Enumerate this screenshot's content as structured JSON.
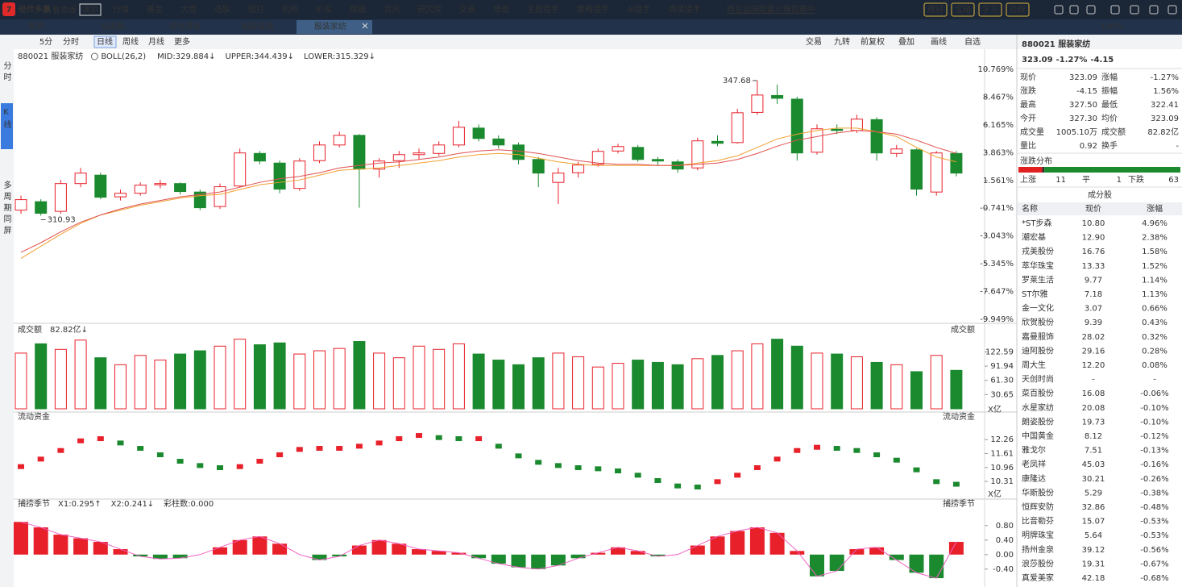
{
  "app": {
    "logo_mark": "7",
    "logo": "经传多赢",
    "edition": "智尊版",
    "mode": "演示",
    "menu": [
      "行情",
      "基金",
      "大盘",
      "选股",
      "短打",
      "机构",
      "价投",
      "数据",
      "资讯",
      "研究院",
      "交易",
      "增值",
      "主题猎手",
      "策略猎手",
      "AI猎手",
      "舆情猎手"
    ],
    "promo": "杨总监陪跑震火爆招募中",
    "tools": [
      "理财",
      "宝箱",
      "学习",
      "社群"
    ],
    "zoom": "100%"
  },
  "tabs": [
    "首页",
    "自选股",
    "综合排名",
    "超级复盘",
    "服装家纺"
  ],
  "side_tabs": [
    "分时",
    "K线",
    "多周期同屏"
  ],
  "toolbar": {
    "left": [
      "5分",
      "分时",
      "日线",
      "周线",
      "月线",
      "更多"
    ],
    "right": [
      "交易",
      "九转",
      "前复权",
      "叠加",
      "画线",
      "自选"
    ]
  },
  "chart_data": [
    {
      "type": "candlestick",
      "title": "880021 服装家纺",
      "subtitle": "BOLL(26,2)",
      "legend": [
        {
          "text": "MID:329.884↓",
          "color": "#333333"
        },
        {
          "text": "UPPER:344.439↓",
          "color": "#e08a00"
        },
        {
          "text": "LOWER:315.329↓",
          "color": "#e020c0"
        }
      ],
      "ylim": [
        -9.949,
        10.769
      ],
      "yticks": [
        {
          "value": 10.769,
          "label": "10.769%"
        },
        {
          "value": 8.467,
          "label": "8.467%"
        },
        {
          "value": 6.165,
          "label": "6.165%"
        },
        {
          "value": 3.863,
          "label": "3.863%"
        },
        {
          "value": 1.561,
          "label": "1.561%"
        },
        {
          "value": -0.741,
          "label": "-0.741%"
        },
        {
          "value": -3.043,
          "label": "-3.043%"
        },
        {
          "value": -5.345,
          "label": "-5.345%"
        },
        {
          "value": -7.647,
          "label": "-7.647%"
        },
        {
          "value": -9.949,
          "label": "-9.949%"
        }
      ],
      "up_color": "#e8202a",
      "down_color": "#1b8a2f",
      "candles": [
        [
          -0.9,
          0.3,
          -1.2,
          -0.03
        ],
        [
          -0.2,
          0.0,
          -1.36,
          -1.16
        ],
        [
          -1.0,
          1.6,
          -1.2,
          1.3
        ],
        [
          1.3,
          2.6,
          1.0,
          2.17
        ],
        [
          2.0,
          2.2,
          0.0,
          0.17
        ],
        [
          0.2,
          0.8,
          -0.1,
          0.5
        ],
        [
          0.5,
          1.4,
          0.3,
          1.17
        ],
        [
          1.2,
          1.6,
          0.9,
          1.3
        ],
        [
          1.3,
          1.4,
          0.4,
          0.64
        ],
        [
          0.6,
          0.8,
          -0.9,
          -0.7
        ],
        [
          -0.6,
          1.3,
          -0.8,
          1.04
        ],
        [
          1.1,
          4.2,
          1.0,
          3.84
        ],
        [
          3.8,
          4.0,
          2.9,
          3.17
        ],
        [
          3.0,
          3.2,
          0.5,
          0.84
        ],
        [
          0.9,
          3.4,
          0.7,
          3.17
        ],
        [
          3.2,
          4.8,
          3.0,
          4.5
        ],
        [
          4.5,
          5.6,
          4.3,
          5.3
        ],
        [
          5.3,
          5.4,
          -0.7,
          2.5
        ],
        [
          2.5,
          3.4,
          1.8,
          3.17
        ],
        [
          3.2,
          4.0,
          2.6,
          3.7
        ],
        [
          3.7,
          4.2,
          3.3,
          3.84
        ],
        [
          3.8,
          4.8,
          3.6,
          4.5
        ],
        [
          4.5,
          6.5,
          4.3,
          5.97
        ],
        [
          5.9,
          6.2,
          4.8,
          5.04
        ],
        [
          5.0,
          5.3,
          4.2,
          4.5
        ],
        [
          4.5,
          4.7,
          2.9,
          3.3
        ],
        [
          3.3,
          3.5,
          1.0,
          2.17
        ],
        [
          1.4,
          2.6,
          -0.4,
          2.17
        ],
        [
          2.2,
          3.1,
          1.8,
          2.84
        ],
        [
          2.9,
          4.2,
          2.7,
          3.97
        ],
        [
          4.0,
          4.6,
          3.8,
          4.37
        ],
        [
          4.3,
          4.5,
          3.1,
          3.3
        ],
        [
          3.3,
          3.5,
          2.8,
          3.17
        ],
        [
          3.1,
          3.3,
          2.2,
          2.5
        ],
        [
          2.6,
          5.1,
          2.4,
          4.84
        ],
        [
          4.8,
          5.3,
          4.4,
          4.64
        ],
        [
          4.7,
          7.5,
          4.6,
          7.17
        ],
        [
          7.2,
          9.84,
          7.0,
          8.64
        ],
        [
          8.6,
          9.5,
          7.9,
          8.37
        ],
        [
          8.3,
          8.5,
          3.2,
          3.84
        ],
        [
          3.9,
          6.2,
          3.7,
          5.84
        ],
        [
          5.8,
          6.2,
          5.4,
          5.7
        ],
        [
          5.7,
          7.0,
          5.5,
          6.64
        ],
        [
          6.6,
          6.8,
          3.2,
          3.84
        ],
        [
          3.8,
          4.5,
          3.5,
          4.17
        ],
        [
          4.1,
          4.2,
          0.3,
          0.84
        ],
        [
          0.6,
          4.0,
          0.3,
          3.84
        ],
        [
          3.8,
          4.0,
          1.9,
          2.17
        ]
      ],
      "extreme_labels": {
        "high": "347.68",
        "low": "310.93"
      },
      "series": [
        {
          "name": "MA1",
          "color": "#f0a030",
          "values": [
            -4.9,
            -3.9,
            -2.9,
            -2.0,
            -1.3,
            -0.9,
            -0.5,
            -0.2,
            0.1,
            0.3,
            0.4,
            0.8,
            1.2,
            1.4,
            1.6,
            2.0,
            2.4,
            2.5,
            2.6,
            2.8,
            3.0,
            3.2,
            3.5,
            3.7,
            3.8,
            3.7,
            3.4,
            3.1,
            2.9,
            2.8,
            2.8,
            2.8,
            2.8,
            2.8,
            3.0,
            3.2,
            3.6,
            4.3,
            5.0,
            5.4,
            5.7,
            5.9,
            5.9,
            5.6,
            5.2,
            4.3,
            3.5,
            3.1
          ]
        },
        {
          "name": "MA2",
          "color": "#e05050",
          "values": [
            -4.4,
            -3.6,
            -2.7,
            -1.9,
            -1.3,
            -0.8,
            -0.4,
            -0.1,
            0.2,
            0.4,
            0.6,
            1.0,
            1.4,
            1.7,
            1.9,
            2.2,
            2.6,
            2.8,
            3.0,
            3.1,
            3.3,
            3.5,
            3.8,
            4.0,
            4.1,
            4.0,
            3.8,
            3.5,
            3.2,
            3.0,
            2.9,
            2.9,
            2.8,
            2.8,
            2.9,
            3.0,
            3.3,
            3.8,
            4.4,
            4.9,
            5.2,
            5.5,
            5.7,
            5.6,
            5.4,
            4.9,
            4.3,
            3.8
          ]
        }
      ]
    },
    {
      "type": "bar",
      "title": "成交额",
      "subtitle": "82.82亿↓",
      "right_label": "成交额",
      "unit": "X亿",
      "ylim": [
        0,
        165
      ],
      "yticks": [
        30.65,
        {
          "value": 61.3,
          "label": "61.30"
        },
        91.94,
        122.59
      ],
      "values": [
        120,
        140,
        128,
        148,
        110,
        95,
        115,
        105,
        118,
        125,
        135,
        150,
        138,
        142,
        118,
        125,
        130,
        145,
        120,
        110,
        135,
        128,
        140,
        118,
        105,
        95,
        110,
        120,
        112,
        90,
        98,
        105,
        100,
        95,
        108,
        115,
        125,
        140,
        150,
        135,
        120,
        118,
        112,
        100,
        95,
        80,
        115,
        82.82
      ]
    },
    {
      "type": "dots",
      "title": "流动资金",
      "right_label": "流动资金",
      "unit": "X亿",
      "ylim": [
        9.75,
        12.94
      ],
      "yticks": [
        12.26,
        11.61,
        10.96,
        10.31
      ],
      "values": [
        11.0,
        11.35,
        11.75,
        12.2,
        12.3,
        12.1,
        11.85,
        11.55,
        11.25,
        11.05,
        10.95,
        11.0,
        11.25,
        11.55,
        11.8,
        11.85,
        11.85,
        11.95,
        12.1,
        12.3,
        12.45,
        12.35,
        12.3,
        12.3,
        11.95,
        11.5,
        11.2,
        11.05,
        10.95,
        10.9,
        10.8,
        10.6,
        10.35,
        10.1,
        10.05,
        10.3,
        10.6,
        10.95,
        11.35,
        11.75,
        11.9,
        11.85,
        11.75,
        11.55,
        11.3,
        10.85,
        10.3,
        10.18
      ]
    },
    {
      "type": "oscillator",
      "title": "捕捞季节",
      "right_label": "捕捞季节",
      "legend": [
        {
          "text": "X1:0.295↑",
          "color": "#e08a00"
        },
        {
          "text": "X2:0.241↓",
          "color": "#e020c0"
        },
        {
          "text": "彩柱数:0.000",
          "color": "#1b8a2f"
        }
      ],
      "ylim": [
        -0.76,
        1.24
      ],
      "yticks": [
        {
          "value": 0.8,
          "label": "0.80"
        },
        {
          "value": 0.4,
          "label": "0.40"
        },
        {
          "value": 0,
          "label": "0.00"
        },
        {
          "value": -0.4,
          "label": "-0.40"
        }
      ],
      "values": [
        0.9,
        0.75,
        0.55,
        0.45,
        0.35,
        0.15,
        -0.05,
        -0.12,
        -0.1,
        0.0,
        0.2,
        0.4,
        0.5,
        0.3,
        0.0,
        -0.15,
        -0.05,
        0.25,
        0.4,
        0.3,
        0.15,
        0.1,
        0.05,
        -0.1,
        -0.25,
        -0.35,
        -0.4,
        -0.3,
        -0.1,
        0.05,
        0.2,
        0.1,
        -0.05,
        0.0,
        0.25,
        0.5,
        0.65,
        0.75,
        0.6,
        0.1,
        -0.6,
        -0.45,
        0.15,
        0.2,
        -0.15,
        -0.5,
        -0.65,
        0.35
      ]
    }
  ],
  "quote": {
    "title": "880021 服装家纺",
    "price": "323.09",
    "change_pct": "-1.27%",
    "change": "-4.15",
    "stats": [
      [
        "现价",
        "323.09",
        "涨幅",
        "-1.27%"
      ],
      [
        "涨跌",
        "-4.15",
        "振幅",
        "1.56%"
      ],
      [
        "最高",
        "327.50",
        "最低",
        "322.41"
      ],
      [
        "今开",
        "327.30",
        "均价",
        "323.09"
      ],
      [
        "成交量",
        "1005.10万",
        "成交额",
        "82.82亿"
      ],
      [
        "量比",
        "0.92",
        "换手",
        "-"
      ]
    ]
  },
  "distribution": {
    "title": "涨跌分布",
    "items": [
      {
        "label": "上涨",
        "value": 11,
        "color": "#e02020"
      },
      {
        "label": "平",
        "value": 1,
        "color": "#333333"
      },
      {
        "label": "下跌",
        "value": 63,
        "color": "#1b8a2f"
      }
    ]
  },
  "constituents": {
    "title": "成分股",
    "header": [
      "名称",
      "现价",
      "涨幅"
    ],
    "rows": [
      [
        "*ST步森",
        "10.80",
        "4.96%"
      ],
      [
        "潮宏基",
        "12.90",
        "2.38%"
      ],
      [
        "戎美股份",
        "16.76",
        "1.58%"
      ],
      [
        "萃华珠宝",
        "13.33",
        "1.52%"
      ],
      [
        "罗莱生活",
        "9.77",
        "1.14%"
      ],
      [
        "ST尔雅",
        "7.18",
        "1.13%"
      ],
      [
        "金一文化",
        "3.07",
        "0.66%"
      ],
      [
        "欣贺股份",
        "9.39",
        "0.43%"
      ],
      [
        "嘉曼服饰",
        "28.02",
        "0.32%"
      ],
      [
        "迪阿股份",
        "29.16",
        "0.28%"
      ],
      [
        "周大生",
        "12.20",
        "0.08%"
      ],
      [
        "天创时尚",
        "-",
        "-"
      ],
      [
        "菜百股份",
        "16.08",
        "-0.06%"
      ],
      [
        "水星家纺",
        "20.08",
        "-0.10%"
      ],
      [
        "朗姿股份",
        "19.73",
        "-0.10%"
      ],
      [
        "中国黄金",
        "8.12",
        "-0.12%"
      ],
      [
        "雅戈尔",
        "7.51",
        "-0.13%"
      ],
      [
        "老凤祥",
        "45.03",
        "-0.16%"
      ],
      [
        "康隆达",
        "30.21",
        "-0.26%"
      ],
      [
        "华斯股份",
        "5.29",
        "-0.38%"
      ],
      [
        "恒辉安防",
        "32.86",
        "-0.48%"
      ],
      [
        "比音勒芬",
        "15.07",
        "-0.53%"
      ],
      [
        "明牌珠宝",
        "5.64",
        "-0.53%"
      ],
      [
        "扬州金泉",
        "39.12",
        "-0.56%"
      ],
      [
        "浪莎股份",
        "19.31",
        "-0.67%"
      ],
      [
        "真爱美家",
        "42.18",
        "-0.68%"
      ]
    ]
  }
}
